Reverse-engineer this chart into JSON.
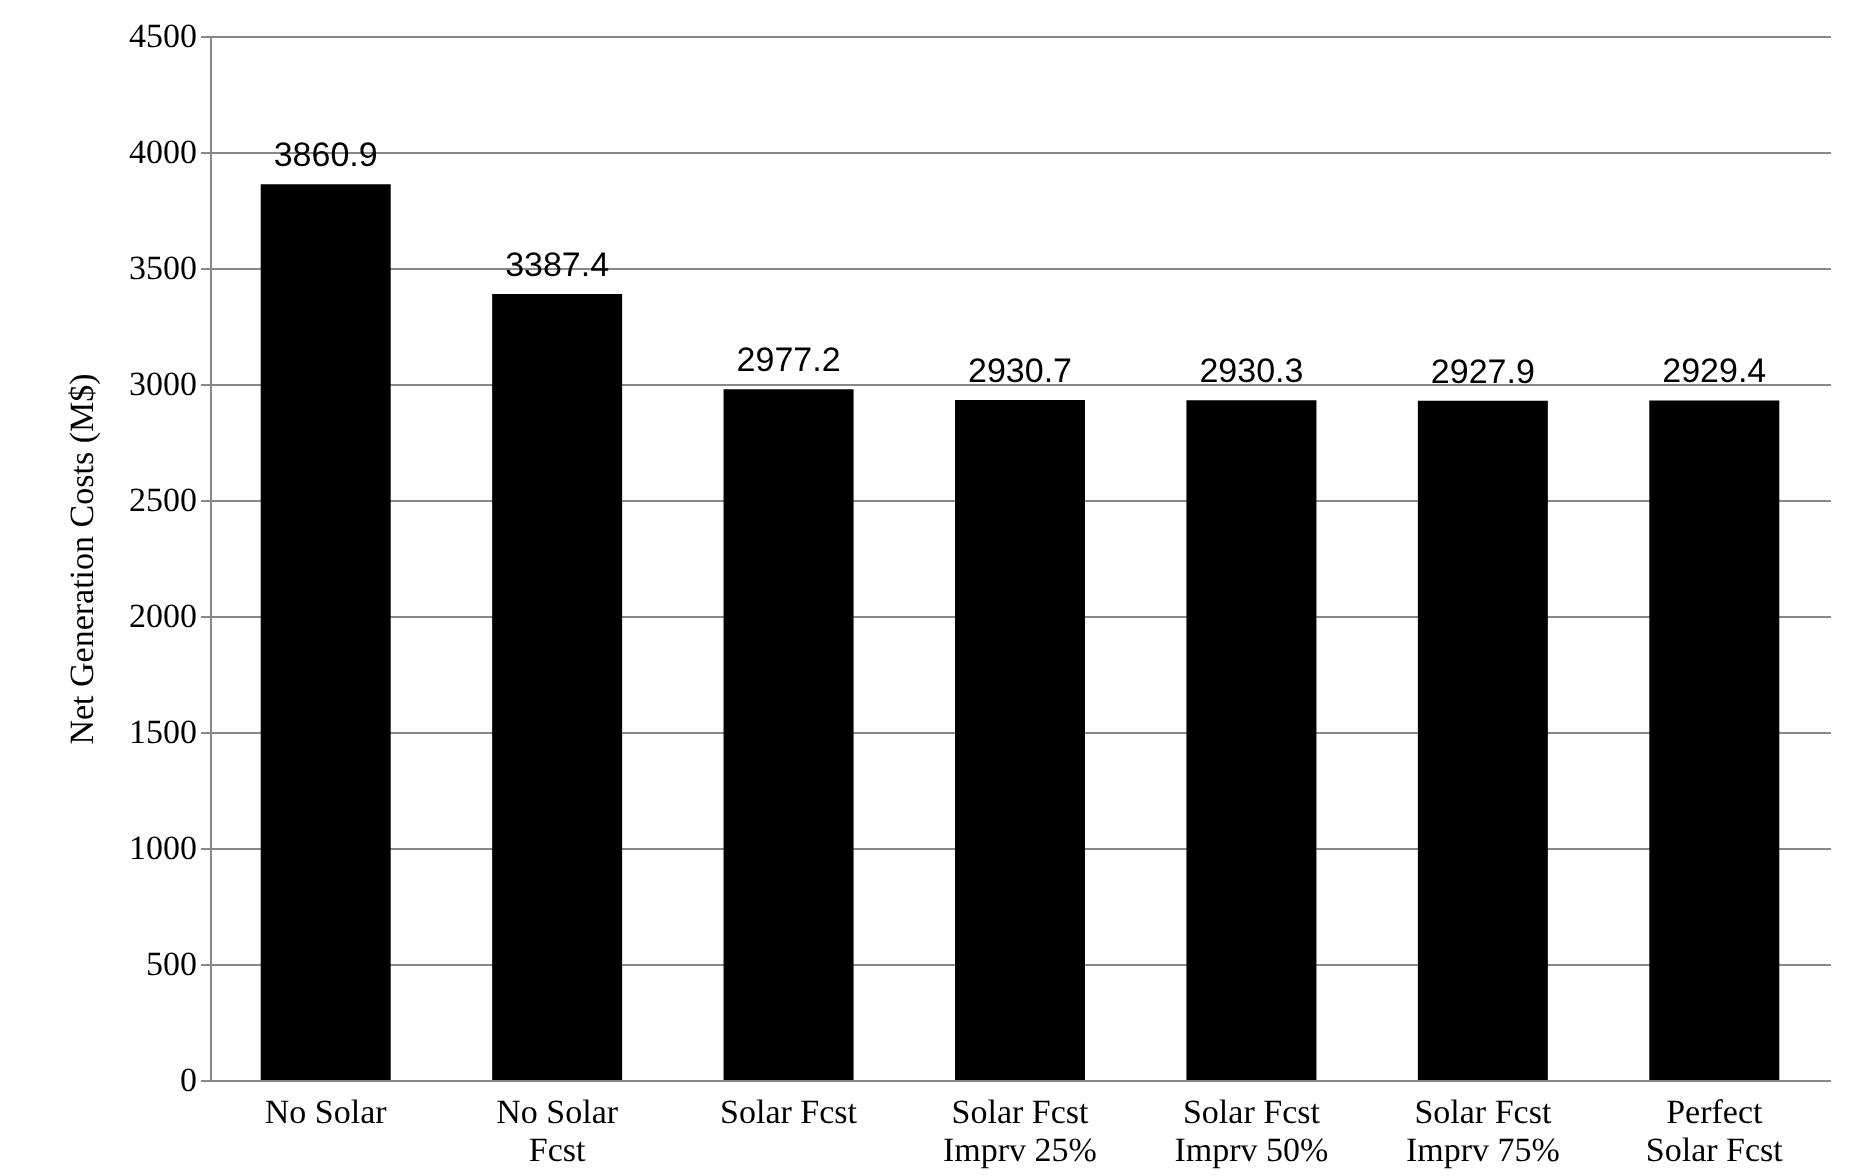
{
  "chart_data": {
    "type": "bar",
    "ylabel": "Net Generation Costs (M$)",
    "categories": [
      "No Solar",
      "No Solar Fcst",
      "Solar Fcst",
      "Solar Fcst Imprv 25%",
      "Solar Fcst Imprv 50%",
      "Solar Fcst Imprv 75%",
      "Perfect Solar Fcst"
    ],
    "values": [
      3860.9,
      3387.4,
      2977.2,
      2930.7,
      2930.3,
      2927.9,
      2929.4
    ],
    "color": "#000000",
    "data_labels": true,
    "ylim": [
      0,
      4500
    ],
    "yticks": [
      0,
      500,
      1000,
      1500,
      2000,
      2500,
      3000,
      3500,
      4000,
      4500
    ],
    "grid": "y"
  }
}
